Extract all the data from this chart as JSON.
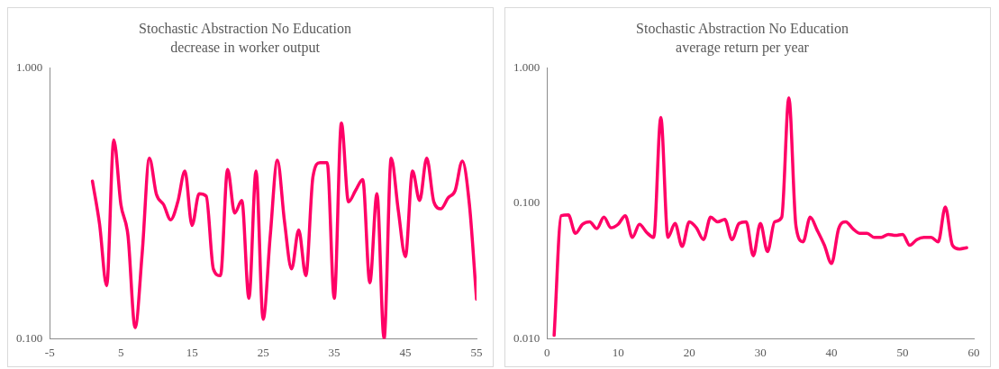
{
  "chart_data": [
    {
      "type": "line",
      "title": "Stochastic Abstraction No Education",
      "subtitle": "decrease in worker output",
      "x": [
        1,
        2,
        3,
        4,
        5,
        6,
        7,
        8,
        9,
        10,
        11,
        12,
        13,
        14,
        15,
        16,
        17,
        18,
        19,
        20,
        21,
        22,
        23,
        24,
        25,
        26,
        27,
        28,
        29,
        30,
        31,
        32,
        33,
        34,
        35,
        36,
        37,
        38,
        39,
        40,
        41,
        42,
        43,
        44,
        45,
        46,
        47,
        48,
        49,
        50,
        51,
        52,
        53,
        54,
        55
      ],
      "series": [
        {
          "color": "#ff0066",
          "values": [
            0.382,
            0.265,
            0.157,
            0.542,
            0.313,
            0.24,
            0.11,
            0.208,
            0.464,
            0.341,
            0.313,
            0.275,
            0.32,
            0.416,
            0.262,
            0.343,
            0.336,
            0.181,
            0.171,
            0.422,
            0.291,
            0.324,
            0.141,
            0.416,
            0.118,
            0.24,
            0.456,
            0.271,
            0.181,
            0.252,
            0.171,
            0.396,
            0.447,
            0.447,
            0.141,
            0.625,
            0.32,
            0.353,
            0.387,
            0.161,
            0.343,
            0.1,
            0.464,
            0.298,
            0.201,
            0.416,
            0.324,
            0.464,
            0.32,
            0.302,
            0.331,
            0.353,
            0.453,
            0.313,
            0.14
          ]
        }
      ],
      "xlim": [
        -5,
        55
      ],
      "xticks": [
        -5,
        5,
        15,
        25,
        35,
        45,
        55
      ],
      "ylim": [
        0.1,
        1
      ],
      "yticks": [
        {
          "value": 0.1,
          "label": "0.100"
        },
        {
          "value": 1,
          "label": "1.000"
        }
      ],
      "log": "y",
      "grid": false,
      "legend": false,
      "marker": "none",
      "line_style": "solid"
    },
    {
      "type": "line",
      "title": "Stochastic Abstraction No Education",
      "subtitle": "average return per year",
      "x": [
        1,
        2,
        3,
        4,
        5,
        6,
        7,
        8,
        9,
        10,
        11,
        12,
        13,
        14,
        15,
        16,
        17,
        18,
        19,
        20,
        21,
        22,
        23,
        24,
        25,
        26,
        27,
        28,
        29,
        30,
        31,
        32,
        33,
        34,
        35,
        36,
        37,
        38,
        39,
        40,
        41,
        42,
        43,
        44,
        45,
        46,
        47,
        48,
        49,
        50,
        51,
        52,
        53,
        54,
        55,
        56,
        57,
        58,
        59
      ],
      "series": [
        {
          "color": "#ff0066",
          "values": [
            0.0106,
            0.081,
            0.082,
            0.06,
            0.07,
            0.073,
            0.065,
            0.079,
            0.066,
            0.07,
            0.081,
            0.056,
            0.07,
            0.061,
            0.056,
            0.43,
            0.056,
            0.071,
            0.048,
            0.073,
            0.066,
            0.054,
            0.079,
            0.073,
            0.076,
            0.054,
            0.071,
            0.073,
            0.041,
            0.071,
            0.044,
            0.073,
            0.079,
            0.6,
            0.068,
            0.052,
            0.079,
            0.063,
            0.049,
            0.036,
            0.065,
            0.073,
            0.065,
            0.06,
            0.06,
            0.056,
            0.056,
            0.059,
            0.058,
            0.059,
            0.049,
            0.054,
            0.056,
            0.056,
            0.052,
            0.094,
            0.049,
            0.046,
            0.047
          ]
        }
      ],
      "xlim": [
        0,
        60
      ],
      "xticks": [
        0,
        10,
        20,
        30,
        40,
        50,
        60
      ],
      "ylim": [
        0.01,
        1
      ],
      "yticks": [
        {
          "value": 0.01,
          "label": "0.010"
        },
        {
          "value": 0.1,
          "label": "0.100"
        },
        {
          "value": 1,
          "label": "1.000"
        }
      ],
      "log": "y",
      "grid": false,
      "legend": false,
      "marker": "none",
      "line_style": "solid"
    }
  ]
}
